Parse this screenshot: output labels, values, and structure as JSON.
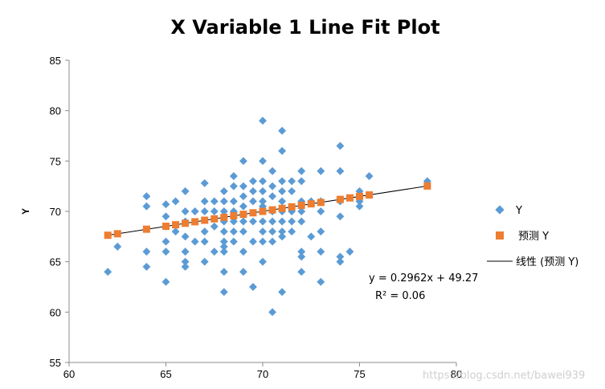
{
  "chart_data": {
    "type": "scatter",
    "title": "X Variable 1 Line Fit  Plot",
    "xlabel": "",
    "ylabel": "Y",
    "xlim": [
      60,
      80
    ],
    "ylim": [
      55,
      85
    ],
    "xticks": [
      60,
      65,
      70,
      75,
      80
    ],
    "yticks": [
      55,
      60,
      65,
      70,
      75,
      80,
      85
    ],
    "grid": false,
    "legend_position": "right",
    "colors": {
      "observed": "#5b9bd5",
      "predicted": "#ed7d31",
      "trendline": "#000000"
    },
    "series": [
      {
        "name": "Y",
        "marker": "diamond",
        "points": [
          [
            62,
            64
          ],
          [
            62.5,
            66.5
          ],
          [
            64,
            71.5
          ],
          [
            64,
            70.5
          ],
          [
            64,
            66
          ],
          [
            64,
            64.5
          ],
          [
            65,
            70.7
          ],
          [
            65,
            69.5
          ],
          [
            65,
            68.5
          ],
          [
            65,
            67
          ],
          [
            65,
            66
          ],
          [
            65,
            63
          ],
          [
            65.5,
            71
          ],
          [
            65.5,
            68
          ],
          [
            66,
            72
          ],
          [
            66,
            70
          ],
          [
            66,
            69
          ],
          [
            66,
            67.5
          ],
          [
            66,
            66
          ],
          [
            66,
            65
          ],
          [
            66,
            64.5
          ],
          [
            66.5,
            70
          ],
          [
            66.5,
            67
          ],
          [
            67,
            72.8
          ],
          [
            67,
            71
          ],
          [
            67,
            70
          ],
          [
            67,
            68
          ],
          [
            67,
            67
          ],
          [
            67,
            65
          ],
          [
            67.5,
            71
          ],
          [
            67.5,
            70
          ],
          [
            67.5,
            68.5
          ],
          [
            67.5,
            66
          ],
          [
            68,
            72
          ],
          [
            68,
            71
          ],
          [
            68,
            70
          ],
          [
            68,
            69
          ],
          [
            68,
            68
          ],
          [
            68,
            67
          ],
          [
            68,
            66.5
          ],
          [
            68,
            66
          ],
          [
            68,
            64
          ],
          [
            68,
            62
          ],
          [
            68.5,
            73.5
          ],
          [
            68.5,
            72.5
          ],
          [
            68.5,
            71
          ],
          [
            68.5,
            70
          ],
          [
            68.5,
            69
          ],
          [
            68.5,
            68
          ],
          [
            68.5,
            67
          ],
          [
            69,
            75
          ],
          [
            69,
            72.5
          ],
          [
            69,
            71.5
          ],
          [
            69,
            70.5
          ],
          [
            69,
            69
          ],
          [
            69,
            68
          ],
          [
            69,
            66
          ],
          [
            69,
            64
          ],
          [
            69.5,
            73
          ],
          [
            69.5,
            72
          ],
          [
            69.5,
            71
          ],
          [
            69.5,
            69
          ],
          [
            69.5,
            67
          ],
          [
            69.5,
            62.5
          ],
          [
            70,
            79
          ],
          [
            70,
            75
          ],
          [
            70,
            73
          ],
          [
            70,
            72
          ],
          [
            70,
            71
          ],
          [
            70,
            70.5
          ],
          [
            70,
            69
          ],
          [
            70,
            68
          ],
          [
            70,
            67
          ],
          [
            70,
            65
          ],
          [
            70.5,
            74
          ],
          [
            70.5,
            72.5
          ],
          [
            70.5,
            71.5
          ],
          [
            70.5,
            70
          ],
          [
            70.5,
            69
          ],
          [
            70.5,
            68
          ],
          [
            70.5,
            67
          ],
          [
            70.5,
            60
          ],
          [
            71,
            78
          ],
          [
            71,
            76
          ],
          [
            71,
            73
          ],
          [
            71,
            72
          ],
          [
            71,
            71
          ],
          [
            71,
            70
          ],
          [
            71,
            69
          ],
          [
            71,
            68
          ],
          [
            71,
            67.5
          ],
          [
            71,
            62
          ],
          [
            71.5,
            73
          ],
          [
            71.5,
            72
          ],
          [
            71.5,
            70
          ],
          [
            71.5,
            69
          ],
          [
            71.5,
            68
          ],
          [
            72,
            74
          ],
          [
            72,
            73
          ],
          [
            72,
            71
          ],
          [
            72,
            70
          ],
          [
            72,
            69
          ],
          [
            72,
            66
          ],
          [
            72,
            65.5
          ],
          [
            72,
            64
          ],
          [
            72.5,
            71
          ],
          [
            72.5,
            67.5
          ],
          [
            73,
            74
          ],
          [
            73,
            71
          ],
          [
            73,
            70
          ],
          [
            73,
            68
          ],
          [
            73,
            66
          ],
          [
            73,
            63
          ],
          [
            74,
            76.5
          ],
          [
            74,
            74
          ],
          [
            74,
            71
          ],
          [
            74,
            69.5
          ],
          [
            74,
            65.5
          ],
          [
            74,
            65
          ],
          [
            74.5,
            66
          ],
          [
            75,
            72
          ],
          [
            75,
            71
          ],
          [
            75,
            70.5
          ],
          [
            75.5,
            73.5
          ],
          [
            78.5,
            73
          ]
        ]
      },
      {
        "name": "预测 Y",
        "marker": "square",
        "points": [
          [
            62,
            67.63
          ],
          [
            62.5,
            67.78
          ],
          [
            64,
            68.23
          ],
          [
            65,
            68.52
          ],
          [
            65.5,
            68.67
          ],
          [
            66,
            68.82
          ],
          [
            66.5,
            68.97
          ],
          [
            67,
            69.12
          ],
          [
            67.5,
            69.26
          ],
          [
            68,
            69.41
          ],
          [
            68.5,
            69.56
          ],
          [
            69,
            69.71
          ],
          [
            69.5,
            69.86
          ],
          [
            70,
            70.0
          ],
          [
            70.5,
            70.15
          ],
          [
            71,
            70.3
          ],
          [
            71.5,
            70.45
          ],
          [
            72,
            70.6
          ],
          [
            72.5,
            70.75
          ],
          [
            73,
            70.89
          ],
          [
            74,
            71.19
          ],
          [
            74.5,
            71.34
          ],
          [
            75,
            71.49
          ],
          [
            75.5,
            71.63
          ],
          [
            78.5,
            72.52
          ]
        ]
      },
      {
        "name": "线性 (预测 Y)",
        "type": "line",
        "x": [
          62,
          78.5
        ],
        "y": [
          67.63,
          72.52
        ]
      }
    ],
    "annotations": {
      "equation": "y = 0.2962x + 49.27",
      "r_squared": "R² = 0.06"
    }
  },
  "watermark": "https://blog.csdn.net/bawei939"
}
